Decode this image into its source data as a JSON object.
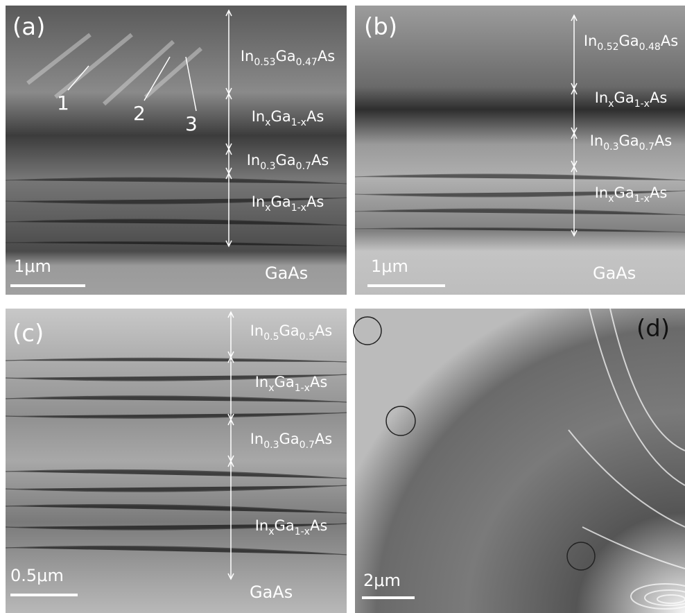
{
  "panels": [
    {
      "label": "(a)",
      "scale_bar": "1μm",
      "substrate": "GaAs",
      "layers": [
        [
          "In",
          "0.53",
          "Ga",
          "0.47",
          "As"
        ],
        [
          "In",
          "x",
          "Ga",
          "1-x",
          "As"
        ],
        [
          "In",
          "0.3",
          "Ga",
          "0.7",
          "As"
        ],
        [
          "In",
          "x",
          "Ga",
          "1-x",
          "As"
        ]
      ],
      "markers": [
        "1",
        "2",
        "3"
      ]
    },
    {
      "label": "(b)",
      "scale_bar": "1μm",
      "substrate": "GaAs",
      "layers": [
        [
          "In",
          "0.52",
          "Ga",
          "0.48",
          "As"
        ],
        [
          "In",
          "x",
          "Ga",
          "1-x",
          "As"
        ],
        [
          "In",
          "0.3",
          "Ga",
          "0.7",
          "As"
        ],
        [
          "In",
          "x",
          "Ga",
          "1-x",
          "As"
        ]
      ]
    },
    {
      "label": "(c)",
      "scale_bar": "0.5μm",
      "substrate": "GaAs",
      "layers": [
        [
          "In",
          "0.5",
          "Ga",
          "0.5",
          "As"
        ],
        [
          "In",
          "x",
          "Ga",
          "1-x",
          "As"
        ],
        [
          "In",
          "0.3",
          "Ga",
          "0.7",
          "As"
        ],
        [
          "In",
          "x",
          "Ga",
          "1-x",
          "As"
        ]
      ]
    },
    {
      "label": "(d)",
      "scale_bar": "2μm"
    }
  ]
}
